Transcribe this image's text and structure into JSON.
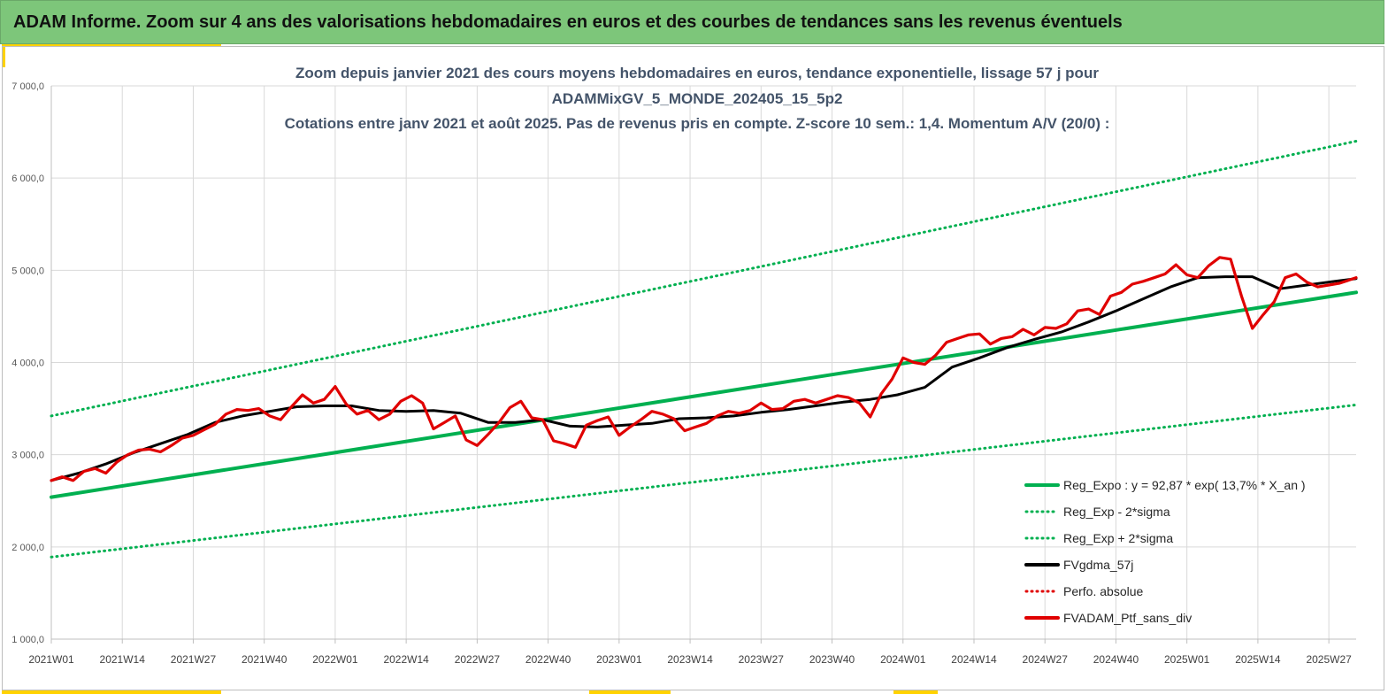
{
  "header": {
    "title": "ADAM Informe. Zoom sur 4 ans des valorisations hebdomadaires en euros et des courbes de tendances sans les revenus éventuels"
  },
  "colors": {
    "banner": "#7dc67a",
    "accent": "#ffd200",
    "green": "#00b050",
    "black": "#000000",
    "red": "#e00000"
  },
  "chart_data": {
    "type": "line",
    "title": [
      "Zoom depuis janvier 2021 des cours moyens hebdomadaires  en euros, tendance exponentielle, lissage 57 j pour",
      "ADAMMixGV_5_MONDE_202405_15_5p2",
      "Cotations entre janv 2021 et août 2025. Pas de revenus pris en compte. Z-score 10 sem.: 1,4. Momentum A/V (20/0) :"
    ],
    "x_range": [
      0,
      239
    ],
    "ylim": [
      1000,
      7000
    ],
    "yticks": [
      1000,
      2000,
      3000,
      4000,
      5000,
      6000,
      7000
    ],
    "ytick_labels": [
      "1 000,0",
      "2 000,0",
      "3 000,0",
      "4 000,0",
      "5 000,0",
      "6 000,0",
      "7 000,0"
    ],
    "xticks": [
      0,
      13,
      26,
      39,
      52,
      65,
      78,
      91,
      104,
      117,
      130,
      143,
      156,
      169,
      182,
      195,
      208,
      221,
      234
    ],
    "xtick_labels": [
      "2021W01",
      "2021W14",
      "2021W27",
      "2021W40",
      "2022W01",
      "2022W14",
      "2022W27",
      "2022W40",
      "2023W01",
      "2023W14",
      "2023W27",
      "2023W40",
      "2024W01",
      "2024W14",
      "2024W27",
      "2024W40",
      "2025W01",
      "2025W14",
      "2025W27"
    ],
    "grid": true,
    "legend_position": "bottom-right",
    "series": [
      {
        "name": "Reg_Expo : y = 92,87 * exp( 13,7% *  X_an )",
        "style": "solid",
        "color": "#00b050",
        "x": [
          0,
          239
        ],
        "y": [
          2540,
          4760
        ]
      },
      {
        "name": "Reg_Exp - 2*sigma",
        "style": "dotted",
        "color": "#00b050",
        "x": [
          0,
          239
        ],
        "y": [
          1890,
          3540
        ]
      },
      {
        "name": "Reg_Exp + 2*sigma",
        "style": "dotted",
        "color": "#00b050",
        "x": [
          0,
          239
        ],
        "y": [
          3420,
          6400
        ]
      },
      {
        "name": "FVgdma_57j",
        "style": "solid",
        "color": "#000000",
        "x": [
          0,
          5,
          10,
          15,
          20,
          25,
          30,
          35,
          40,
          45,
          50,
          55,
          60,
          65,
          70,
          75,
          80,
          85,
          90,
          95,
          100,
          105,
          110,
          115,
          120,
          125,
          130,
          135,
          140,
          145,
          150,
          155,
          160,
          165,
          170,
          175,
          180,
          185,
          190,
          195,
          200,
          205,
          210,
          215,
          220,
          225,
          230,
          235,
          239
        ],
        "y": [
          2720,
          2800,
          2900,
          3020,
          3120,
          3220,
          3350,
          3420,
          3470,
          3520,
          3530,
          3530,
          3480,
          3470,
          3480,
          3450,
          3350,
          3350,
          3380,
          3310,
          3300,
          3320,
          3340,
          3390,
          3400,
          3420,
          3460,
          3490,
          3530,
          3570,
          3600,
          3650,
          3730,
          3950,
          4050,
          4160,
          4250,
          4330,
          4440,
          4560,
          4690,
          4820,
          4920,
          4930,
          4930,
          4800,
          4840,
          4880,
          4910
        ]
      },
      {
        "name": "Perfo. absolue",
        "style": "dotted",
        "color": "#e00000",
        "x": [],
        "y": []
      },
      {
        "name": "FVADAM_Ptf_sans_div",
        "style": "solid",
        "color": "#e00000",
        "x": [
          0,
          2,
          4,
          6,
          8,
          10,
          12,
          14,
          16,
          18,
          20,
          22,
          24,
          26,
          28,
          30,
          32,
          34,
          36,
          38,
          40,
          42,
          44,
          46,
          48,
          50,
          52,
          54,
          56,
          58,
          60,
          62,
          64,
          66,
          68,
          70,
          72,
          74,
          76,
          78,
          80,
          82,
          84,
          86,
          88,
          90,
          92,
          94,
          96,
          98,
          100,
          102,
          104,
          106,
          108,
          110,
          112,
          114,
          116,
          118,
          120,
          122,
          124,
          126,
          128,
          130,
          132,
          134,
          136,
          138,
          140,
          142,
          144,
          146,
          148,
          150,
          152,
          154,
          156,
          158,
          160,
          162,
          164,
          166,
          168,
          170,
          172,
          174,
          176,
          178,
          180,
          182,
          184,
          186,
          188,
          190,
          192,
          194,
          196,
          198,
          200,
          202,
          204,
          206,
          208,
          210,
          212,
          214,
          216,
          218,
          220,
          222,
          224,
          226,
          228,
          230,
          232,
          234,
          236,
          239
        ],
        "y": [
          2720,
          2760,
          2720,
          2820,
          2850,
          2800,
          2920,
          3000,
          3050,
          3060,
          3030,
          3100,
          3180,
          3210,
          3270,
          3330,
          3440,
          3490,
          3480,
          3500,
          3420,
          3380,
          3520,
          3650,
          3560,
          3600,
          3740,
          3550,
          3440,
          3480,
          3380,
          3440,
          3580,
          3640,
          3560,
          3280,
          3350,
          3420,
          3160,
          3100,
          3220,
          3350,
          3510,
          3580,
          3400,
          3380,
          3150,
          3120,
          3080,
          3320,
          3370,
          3410,
          3210,
          3300,
          3380,
          3470,
          3440,
          3390,
          3260,
          3300,
          3340,
          3420,
          3470,
          3450,
          3480,
          3560,
          3490,
          3500,
          3580,
          3600,
          3560,
          3600,
          3640,
          3620,
          3560,
          3410,
          3660,
          3820,
          4050,
          4000,
          3980,
          4080,
          4220,
          4260,
          4300,
          4310,
          4200,
          4260,
          4280,
          4360,
          4300,
          4380,
          4370,
          4420,
          4560,
          4580,
          4520,
          4720,
          4760,
          4850,
          4880,
          4920,
          4960,
          5060,
          4950,
          4920,
          5050,
          5140,
          5120,
          4720,
          4370,
          4520,
          4660,
          4920,
          4960,
          4870,
          4820,
          4840,
          4860,
          4920
        ]
      }
    ]
  }
}
